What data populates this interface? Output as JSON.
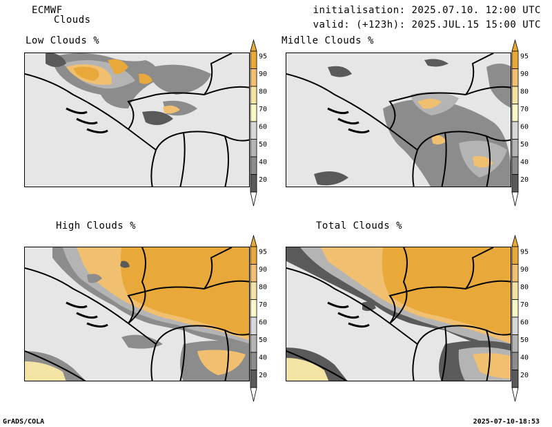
{
  "header": {
    "model": "ECMWF",
    "product": "Clouds",
    "init": "initialisation: 2025.07.10. 12:00 UTC",
    "valid": "valid: (+123h): 2025.JUL.15 15:00 UTC"
  },
  "panels": [
    {
      "title": "Low Clouds %"
    },
    {
      "title": "Midlle Clouds %"
    },
    {
      "title": "High Clouds %"
    },
    {
      "title": "Total Clouds %"
    }
  ],
  "colorbar": {
    "labels": [
      "95",
      "90",
      "80",
      "70",
      "60",
      "50",
      "40",
      "20"
    ],
    "colors": [
      "#e8a83a",
      "#f0c070",
      "#f4e4a4",
      "#f7f7c8",
      "#d8d8d8",
      "#b4b4b4",
      "#8c8c8c",
      "#5a5a5a"
    ]
  },
  "colors": {
    "ocean_land_background": "#e6e6e6",
    "border_lines": "#000000"
  },
  "footer": {
    "left": "GrADS/COLA",
    "right": "2025-07-10-18:53"
  }
}
